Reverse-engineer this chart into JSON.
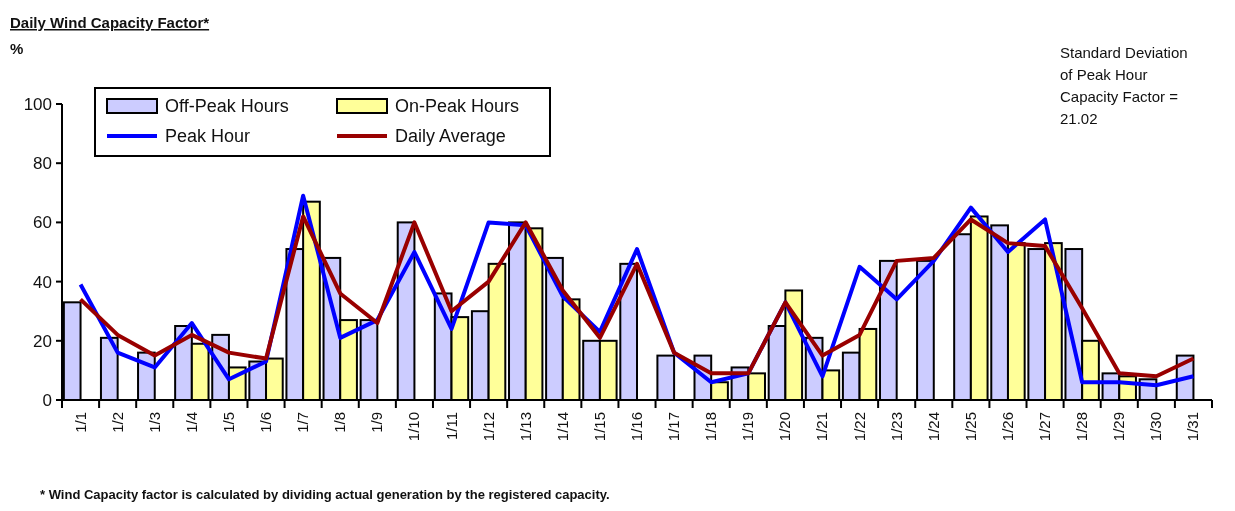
{
  "chart_data": {
    "type": "bar",
    "title": "Daily Wind Capacity Factor*",
    "ylabel": "%",
    "categories": [
      "1/1",
      "1/2",
      "1/3",
      "1/4",
      "1/5",
      "1/6",
      "1/7",
      "1/8",
      "1/9",
      "1/10",
      "1/11",
      "1/12",
      "1/13",
      "1/14",
      "1/15",
      "1/16",
      "1/17",
      "1/18",
      "1/19",
      "1/20",
      "1/21",
      "1/22",
      "1/23",
      "1/24",
      "1/25",
      "1/26",
      "1/27",
      "1/28",
      "1/29",
      "1/30",
      "1/31"
    ],
    "series": [
      {
        "name": "Off-Peak Hours",
        "color": "#ccccff",
        "values": [
          33,
          21,
          16,
          25,
          22,
          13,
          51,
          48,
          27,
          60,
          36,
          30,
          60,
          48,
          20,
          46,
          15,
          15,
          11,
          25,
          21,
          16,
          47,
          47,
          56,
          59,
          51,
          51,
          9,
          7,
          15
        ]
      },
      {
        "name": "On-Peak Hours",
        "color": "#ffff99",
        "values": [
          null,
          null,
          null,
          19,
          11,
          14,
          67,
          27,
          null,
          null,
          28,
          46,
          58,
          34,
          20,
          null,
          null,
          6,
          9,
          37,
          10,
          24,
          null,
          null,
          62,
          53,
          53,
          20,
          8,
          null,
          null
        ]
      },
      {
        "name": "Peak Hour",
        "type": "line",
        "color": "#0000ff",
        "values": [
          39,
          16,
          11,
          26,
          7,
          13,
          69,
          21,
          27,
          50,
          24,
          60,
          59,
          35,
          23,
          51,
          16,
          6,
          9,
          33,
          8,
          45,
          34,
          47,
          65,
          50,
          61,
          6,
          6,
          5,
          8
        ]
      },
      {
        "name": "Daily Average",
        "type": "line",
        "color": "#990000",
        "values": [
          34,
          22,
          15,
          22,
          16,
          14,
          62,
          36,
          26,
          60,
          30,
          40,
          60,
          37,
          21,
          46,
          16,
          9,
          9,
          33,
          15,
          22,
          47,
          48,
          61,
          53,
          52,
          31,
          9,
          8,
          14
        ]
      }
    ],
    "ylim": [
      0,
      100
    ],
    "yticks": [
      0,
      20,
      40,
      60,
      80,
      100
    ],
    "grid": false,
    "legend": "top left",
    "marker": "none",
    "line_style": "solid",
    "annotations": [
      "Standard Deviation of Peak Hour Capacity Factor = 21.02",
      "* Wind Capacity factor is calculated by dividing actual generation by the registered capacity."
    ]
  }
}
